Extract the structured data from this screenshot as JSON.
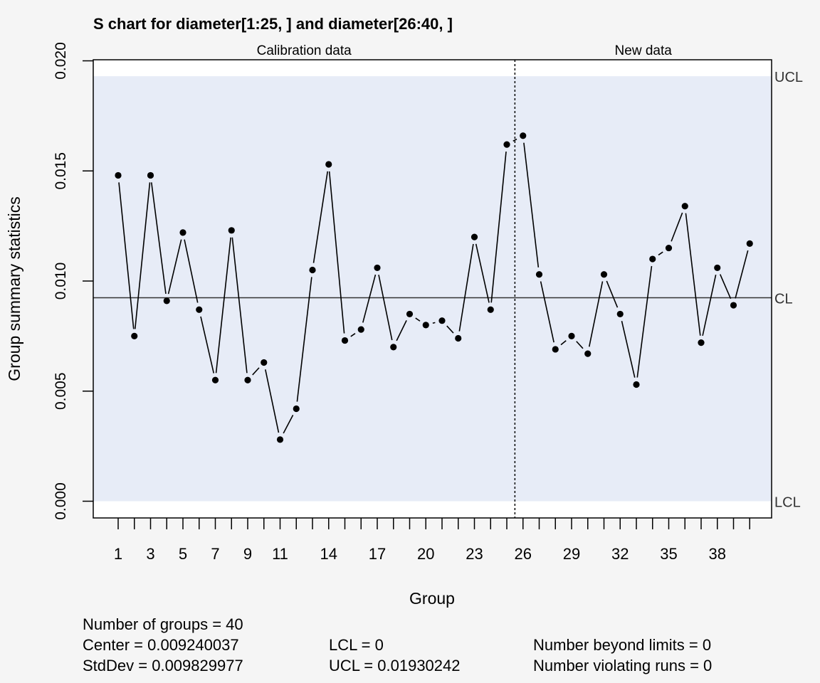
{
  "chart_data": {
    "type": "line",
    "title": "S chart for diameter[1:25, ] and diameter[26:40, ]",
    "xlabel": "Group",
    "ylabel": "Group summary statistics",
    "ylim": [
      0,
      0.02
    ],
    "y_ticks": [
      "0.000",
      "0.005",
      "0.010",
      "0.015",
      "0.020"
    ],
    "x_ticks": [
      "1",
      "3",
      "5",
      "7",
      "9",
      "11",
      "14",
      "17",
      "20",
      "23",
      "26",
      "29",
      "32",
      "35",
      "38"
    ],
    "phase_labels": [
      "Calibration data",
      "New data"
    ],
    "phase_split_after": 25,
    "limit_labels": {
      "ucl": "UCL",
      "cl": "CL",
      "lcl": "LCL"
    },
    "limits": {
      "ucl": 0.01930242,
      "cl": 0.009240037,
      "lcl": 0
    },
    "x": [
      1,
      2,
      3,
      4,
      5,
      6,
      7,
      8,
      9,
      10,
      11,
      12,
      13,
      14,
      15,
      16,
      17,
      18,
      19,
      20,
      21,
      22,
      23,
      24,
      25,
      26,
      27,
      28,
      29,
      30,
      31,
      32,
      33,
      34,
      35,
      36,
      37,
      38,
      39,
      40
    ],
    "values": [
      0.0148,
      0.0075,
      0.0148,
      0.0091,
      0.0122,
      0.0087,
      0.0055,
      0.0123,
      0.0055,
      0.0063,
      0.0028,
      0.0042,
      0.0105,
      0.0153,
      0.0073,
      0.0078,
      0.0106,
      0.007,
      0.0085,
      0.008,
      0.0082,
      0.0074,
      0.012,
      0.0087,
      0.0162,
      0.0166,
      0.0103,
      0.0069,
      0.0075,
      0.0067,
      0.0103,
      0.0085,
      0.0053,
      0.011,
      0.0115,
      0.0134,
      0.0072,
      0.0106,
      0.0089,
      0.0117
    ],
    "colors": {
      "background": "#f5f5f5",
      "plot_bg": "#ffffff",
      "band": "#e7ecf7",
      "line": "#000000",
      "center_line": "#333333"
    },
    "grid": false
  },
  "stats": {
    "groups": "Number of groups = 40",
    "center": "Center = 0.009240037",
    "stddev": "StdDev = 0.009829977",
    "lcl": "LCL = 0",
    "ucl": "UCL = 0.01930242",
    "beyond": "Number beyond limits = 0",
    "violating": "Number violating runs = 0"
  }
}
